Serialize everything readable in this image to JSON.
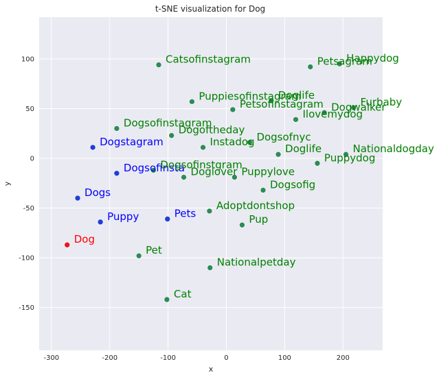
{
  "chart_data": {
    "type": "scatter",
    "title": "t-SNE visualization for Dog",
    "xlabel": "x",
    "ylabel": "y",
    "xlim": [
      -321,
      268
    ],
    "ylim": [
      -193,
      142
    ],
    "xticks": [
      -300,
      -200,
      -100,
      0,
      100,
      200
    ],
    "yticks": [
      -150,
      -100,
      -50,
      0,
      50,
      100
    ],
    "grid": true,
    "colors": {
      "query": "#e31a1c",
      "near": "#1f3fd6",
      "other": "#2e8b57",
      "label_query": "#ff0000",
      "label_near": "#0000ff",
      "label_other": "#008000"
    },
    "points": [
      {
        "label": "Dog",
        "x": -273,
        "y": -87,
        "group": "query"
      },
      {
        "label": "Dogstagram",
        "x": -229,
        "y": 11,
        "group": "near"
      },
      {
        "label": "Dogsofinsta",
        "x": -188,
        "y": -15,
        "group": "near"
      },
      {
        "label": "Dogs",
        "x": -255,
        "y": -40,
        "group": "near"
      },
      {
        "label": "Puppy",
        "x": -216,
        "y": -64,
        "group": "near"
      },
      {
        "label": "Pets",
        "x": -101,
        "y": -61,
        "group": "near"
      },
      {
        "label": "Catsofinstagram",
        "x": -116,
        "y": 94,
        "group": "other"
      },
      {
        "label": "Puppiesofinstagram",
        "x": -59,
        "y": 57,
        "group": "other"
      },
      {
        "label": "Petsofinstagram",
        "x": 11,
        "y": 49,
        "group": "other"
      },
      {
        "label": "Doglife",
        "x": 77,
        "y": 58,
        "group": "other"
      },
      {
        "label": "Petsagram",
        "x": 144,
        "y": 92,
        "group": "other"
      },
      {
        "label": "Happydog",
        "x": 194,
        "y": 95,
        "group": "other"
      },
      {
        "label": "Furbaby",
        "x": 218,
        "y": 51,
        "group": "other"
      },
      {
        "label": "Dogwalker",
        "x": 168,
        "y": 46,
        "group": "other"
      },
      {
        "label": "Ilovemydog",
        "x": 119,
        "y": 39,
        "group": "other"
      },
      {
        "label": "Dogsofinstagram",
        "x": -188,
        "y": 30,
        "group": "other"
      },
      {
        "label": "Dogoftheday",
        "x": -94,
        "y": 23,
        "group": "other"
      },
      {
        "label": "Instadog",
        "x": -40,
        "y": 11,
        "group": "other"
      },
      {
        "label": "Dogsofnyc",
        "x": 40,
        "y": 16,
        "group": "other"
      },
      {
        "label": "Doglife",
        "x": 89,
        "y": 4,
        "group": "other"
      },
      {
        "label": "Nationaldogday",
        "x": 205,
        "y": 4,
        "group": "other"
      },
      {
        "label": "Puppydog",
        "x": 156,
        "y": -5,
        "group": "other"
      },
      {
        "label": "Dogsofinstgram",
        "x": -125,
        "y": -12,
        "group": "other"
      },
      {
        "label": "Doglover",
        "x": -73,
        "y": -19,
        "group": "other"
      },
      {
        "label": "Puppylove",
        "x": 14,
        "y": -19,
        "group": "other"
      },
      {
        "label": "Dogsofig",
        "x": 63,
        "y": -32,
        "group": "other"
      },
      {
        "label": "Adoptdontshop",
        "x": -29,
        "y": -53,
        "group": "other"
      },
      {
        "label": "Pup",
        "x": 27,
        "y": -67,
        "group": "other"
      },
      {
        "label": "Pet",
        "x": -150,
        "y": -98,
        "group": "other"
      },
      {
        "label": "Nationalpetday",
        "x": -28,
        "y": -110,
        "group": "other"
      },
      {
        "label": "Cat",
        "x": -102,
        "y": -142,
        "group": "other"
      }
    ]
  }
}
